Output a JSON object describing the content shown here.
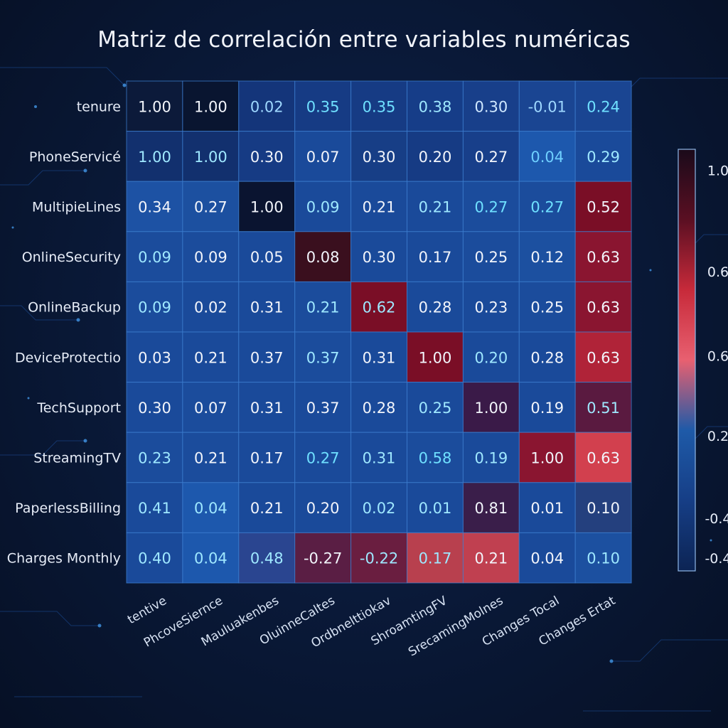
{
  "title": "Matriz de correlación entre variables numéricas",
  "chart_data": {
    "type": "heatmap",
    "title": "Matriz de correlación entre variables numéricas",
    "rows": [
      "tenure",
      "PhoneServicé",
      "MultipieLines",
      "OnlineSecurity",
      "OnlineBackup",
      "DeviceProtectio",
      "TechSupport",
      "StreamingTV",
      "PaperlessBilling",
      "Charges Monthly"
    ],
    "columns": [
      "tentive",
      "PhcoveSiernce",
      "Mauluakenbes",
      "OluinneCaltes",
      "Ordbnelttiokav",
      "ShroamtingFV",
      "SrecamingMolnes",
      "Changes Tocal",
      "Changes Ertat"
    ],
    "values": [
      [
        "1.00",
        "1.00",
        "0.02",
        "0.35",
        "0.35",
        "0.38",
        "0.30",
        "-0.01",
        "0.24"
      ],
      [
        "1.00",
        "1.00",
        "0.30",
        "0.07",
        "0.30",
        "0.20",
        "0.27",
        "0.04",
        "0.29"
      ],
      [
        "0.34",
        "0.27",
        "1.00",
        "0.09",
        "0.21",
        "0.21",
        "0.27",
        "0.27",
        "0.52"
      ],
      [
        "0.09",
        "0.09",
        "0.05",
        "0.08",
        "0.30",
        "0.17",
        "0.25",
        "0.12",
        "0.63"
      ],
      [
        "0.09",
        "0.02",
        "0.31",
        "0.21",
        "0.62",
        "0.28",
        "0.23",
        "0.25",
        "0.63"
      ],
      [
        "0.03",
        "0.21",
        "0.37",
        "0.37",
        "0.31",
        "1.00",
        "0.20",
        "0.28",
        "0.63"
      ],
      [
        "0.30",
        "0.07",
        "0.31",
        "0.37",
        "0.28",
        "0.25",
        "1.00",
        "0.19",
        "0.51"
      ],
      [
        "0.23",
        "0.21",
        "0.17",
        "0.27",
        "0.31",
        "0.58",
        "0.19",
        "1.00",
        "0.63"
      ],
      [
        "0.41",
        "0.04",
        "0.21",
        "0.20",
        "0.02",
        "0.01",
        "0.81",
        "0.01",
        "0.10"
      ],
      [
        "0.40",
        "0.04",
        "0.48",
        "-0.27",
        "-0.22",
        "0.17",
        "0.21",
        "0.04",
        "0.10"
      ]
    ],
    "cell_colors": [
      [
        "#0c1a3a",
        "#091530",
        "#14357a",
        "#163b84",
        "#163b84",
        "#163d88",
        "#183f8a",
        "#1a4592",
        "#1a4592"
      ],
      [
        "#12306e",
        "#12306e",
        "#163b84",
        "#1a4a9a",
        "#173e86",
        "#163b84",
        "#183f8a",
        "#1d58ad",
        "#1a4a9a"
      ],
      [
        "#1d52a4",
        "#1c50a0",
        "#0a1430",
        "#1a4a9a",
        "#1a4a9a",
        "#1a4a9a",
        "#1b4c9c",
        "#1b4c9c",
        "#7a0e26"
      ],
      [
        "#1b4c9c",
        "#1b4c9c",
        "#1a4a9a",
        "#3a0f1e",
        "#1a4a9a",
        "#1a4a9a",
        "#1b4c9c",
        "#1c50a0",
        "#8a1530"
      ],
      [
        "#1b4c9c",
        "#1a4a9a",
        "#1a4a9a",
        "#1b4c9c",
        "#7a0e26",
        "#1a4a9a",
        "#1a4a9a",
        "#1b4c9c",
        "#8a1530"
      ],
      [
        "#1a4a9a",
        "#1a4a9a",
        "#1a4a9a",
        "#1b4c9c",
        "#1a4a9a",
        "#7a0e26",
        "#1a4a9a",
        "#1a4a9a",
        "#b02338"
      ],
      [
        "#1a4a9a",
        "#1b4c9c",
        "#1a4a9a",
        "#1a4a9a",
        "#1a4a9a",
        "#1a4a9a",
        "#3a1a48",
        "#1a4a9a",
        "#5a1a40"
      ],
      [
        "#1b4c9c",
        "#1b4c9c",
        "#1a4a9a",
        "#1a4a9a",
        "#1a4a9a",
        "#1b4c9c",
        "#1a4a9a",
        "#8a1530",
        "#d2404e"
      ],
      [
        "#1a4a9a",
        "#1d58ad",
        "#1a4a9a",
        "#1a4a9a",
        "#1a4a9a",
        "#1a4a9a",
        "#3a1e4a",
        "#1a4a9a",
        "#24407e"
      ],
      [
        "#1a4a9a",
        "#1d58ad",
        "#2a4590",
        "#5a1e44",
        "#6a1e40",
        "#b8404e",
        "#c04050",
        "#1a4a9a",
        "#1c50a0"
      ]
    ],
    "text_colors": [
      [
        "#f2f5fb",
        "#f2f5fb",
        "#9fd8ff",
        "#6fe0ff",
        "#6fe0ff",
        "#9fe8ff",
        "#cfe8ff",
        "#9fd8ff",
        "#6fe0ff"
      ],
      [
        "#9fe8ff",
        "#9fe8ff",
        "#f2f5fb",
        "#f2f5fb",
        "#f2f5fb",
        "#f2f5fb",
        "#f2f5fb",
        "#6fd0ff",
        "#9fe8ff"
      ],
      [
        "#f2f5fb",
        "#f2f5fb",
        "#f2f5fb",
        "#9fe8ff",
        "#f2f5fb",
        "#9fe8ff",
        "#6fe0ff",
        "#6fe0ff",
        "#f2f5fb"
      ],
      [
        "#9fe8ff",
        "#f2f5fb",
        "#f2f5fb",
        "#f2f5fb",
        "#f2f5fb",
        "#f2f5fb",
        "#f2f5fb",
        "#f2f5fb",
        "#f2f5fb"
      ],
      [
        "#9fe8ff",
        "#f2f5fb",
        "#f2f5fb",
        "#9fe8ff",
        "#9fe8ff",
        "#f2f5fb",
        "#f2f5fb",
        "#f2f5fb",
        "#f2f5fb"
      ],
      [
        "#f2f5fb",
        "#f2f5fb",
        "#f2f5fb",
        "#9fe8ff",
        "#f2f5fb",
        "#f2f5fb",
        "#9fe8ff",
        "#f2f5fb",
        "#f2f5fb"
      ],
      [
        "#f2f5fb",
        "#f2f5fb",
        "#f2f5fb",
        "#f2f5fb",
        "#f2f5fb",
        "#9fe8ff",
        "#f2f5fb",
        "#f2f5fb",
        "#9fe8ff"
      ],
      [
        "#9fe8ff",
        "#f2f5fb",
        "#f2f5fb",
        "#6fe0ff",
        "#9fe8ff",
        "#6fe0ff",
        "#9fe8ff",
        "#f2f5fb",
        "#f2f5fb"
      ],
      [
        "#9fe8ff",
        "#9fe8ff",
        "#f2f5fb",
        "#f2f5fb",
        "#9fe8ff",
        "#9fe8ff",
        "#f2f5fb",
        "#f2f5fb",
        "#f2f5fb"
      ],
      [
        "#9fe8ff",
        "#9fe8ff",
        "#9fe8ff",
        "#f2f5fb",
        "#9fe8ff",
        "#9fe8ff",
        "#f2f5fb",
        "#f2f5fb",
        "#9fe8ff"
      ]
    ],
    "colorbar": {
      "ticks": [
        "1.0",
        "0.6",
        "0.6",
        "0.2",
        "-0.4",
        "-0.4"
      ],
      "tick_fractions": [
        0.05,
        0.29,
        0.49,
        0.68,
        0.875,
        0.97
      ],
      "gradient": [
        "#1a0a1a",
        "#5a0f22",
        "#c72a3a",
        "#e86070",
        "#1e5aa8",
        "#163e86",
        "#0c2454"
      ]
    },
    "grid": true
  }
}
